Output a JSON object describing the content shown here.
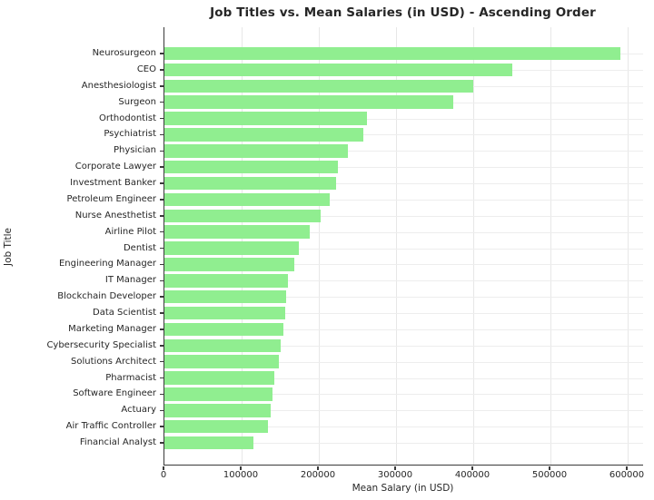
{
  "chart_data": {
    "type": "bar",
    "orientation": "horizontal",
    "title": "Job Titles vs. Mean Salaries (in USD) - Ascending Order",
    "xlabel": "Mean Salary (in USD)",
    "ylabel": "Job Title",
    "categories": [
      "Neurosurgeon",
      "CEO",
      "Anesthesiologist",
      "Surgeon",
      "Orthodontist",
      "Psychiatrist",
      "Physician",
      "Corporate Lawyer",
      "Investment Banker",
      "Petroleum Engineer",
      "Nurse Anesthetist",
      "Airline Pilot",
      "Dentist",
      "Engineering Manager",
      "IT Manager",
      "Blockchain Developer",
      "Data Scientist",
      "Marketing Manager",
      "Cybersecurity Specialist",
      "Solutions Architect",
      "Pharmacist",
      "Software Engineer",
      "Actuary",
      "Air Traffic Controller",
      "Financial Analyst"
    ],
    "values": [
      590000,
      450000,
      400000,
      374000,
      262000,
      258000,
      238000,
      225000,
      222000,
      214000,
      202000,
      188000,
      174000,
      168000,
      160000,
      158000,
      156000,
      154000,
      150000,
      148000,
      142000,
      140000,
      138000,
      134000,
      115000
    ],
    "x_ticks": [
      0,
      100000,
      200000,
      300000,
      400000,
      500000,
      600000
    ],
    "xlim": [
      0,
      620000
    ],
    "grid": true,
    "legend": "none",
    "colors": {
      "bar": "#90EE90",
      "grid": "#e7e7e7",
      "spine": "#3a3a3a",
      "text": "#262626",
      "background": "#ffffff"
    }
  }
}
